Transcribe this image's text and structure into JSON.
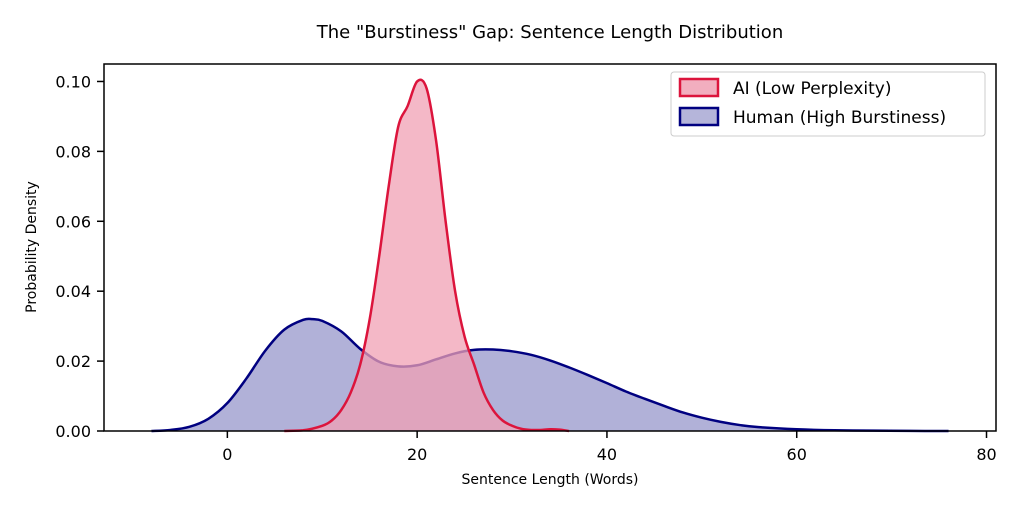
{
  "chart_data": {
    "type": "area",
    "title": "The \"Burstiness\" Gap: Sentence Length Distribution",
    "xlabel": "Sentence Length (Words)",
    "ylabel": "Probability Density",
    "xlim": [
      -13,
      81
    ],
    "ylim": [
      0,
      0.105
    ],
    "xticks": [
      0,
      20,
      40,
      60,
      80
    ],
    "xtick_labels": [
      "0",
      "20",
      "40",
      "60",
      "80"
    ],
    "yticks": [
      0,
      0.02,
      0.04,
      0.06,
      0.08,
      0.1
    ],
    "ytick_labels": [
      "0.00",
      "0.02",
      "0.04",
      "0.06",
      "0.08",
      "0.10"
    ],
    "grid": false,
    "legend_position": "top-right",
    "series": [
      {
        "name": "AI (Low Perplexity)",
        "line_color": "#dc143c",
        "fill_color": "#f0a0b4",
        "x": [
          6,
          8,
          10,
          11,
          12,
          13,
          14,
          15,
          16,
          17,
          18,
          19,
          20,
          21,
          22,
          23,
          24,
          25,
          26,
          27,
          28,
          29,
          30,
          31,
          32,
          33,
          34,
          35,
          36
        ],
        "y": [
          0,
          0.0002,
          0.0015,
          0.003,
          0.006,
          0.011,
          0.019,
          0.032,
          0.05,
          0.07,
          0.087,
          0.093,
          0.1,
          0.098,
          0.083,
          0.06,
          0.04,
          0.027,
          0.019,
          0.011,
          0.006,
          0.003,
          0.0015,
          0.0006,
          0.0003,
          0.0003,
          0.0005,
          0.0004,
          0
        ]
      },
      {
        "name": "Human (High Burstiness)",
        "line_color": "#000080",
        "fill_color": "#a8a8d4",
        "x": [
          -8,
          -6,
          -4,
          -2,
          0,
          2,
          4,
          6,
          8,
          9,
          10,
          12,
          14,
          16,
          18,
          20,
          22,
          24,
          26,
          28,
          30,
          32,
          34,
          36,
          38,
          40,
          42,
          44,
          46,
          48,
          50,
          52,
          54,
          56,
          60,
          64,
          68,
          72,
          76
        ],
        "y": [
          0,
          0.0003,
          0.0012,
          0.0035,
          0.008,
          0.015,
          0.023,
          0.029,
          0.0318,
          0.032,
          0.0315,
          0.0285,
          0.0235,
          0.0198,
          0.0185,
          0.0188,
          0.0205,
          0.0222,
          0.0232,
          0.0233,
          0.0228,
          0.0218,
          0.0202,
          0.0182,
          0.016,
          0.0137,
          0.0113,
          0.0092,
          0.0072,
          0.0053,
          0.0038,
          0.0026,
          0.0017,
          0.0011,
          0.0005,
          0.0002,
          0.0001,
          3e-05,
          0
        ]
      }
    ]
  }
}
